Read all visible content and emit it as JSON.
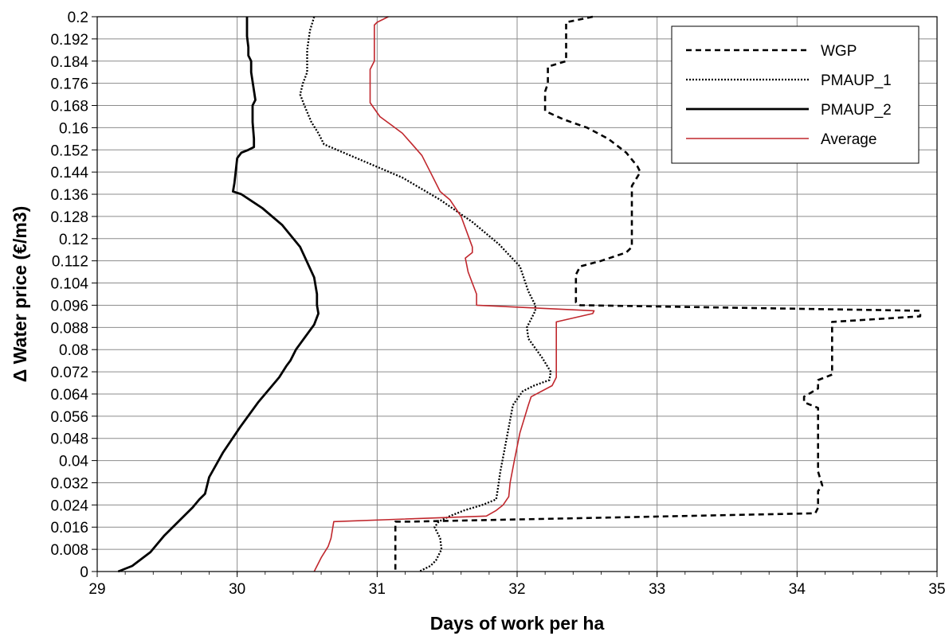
{
  "chart_data": {
    "type": "line",
    "xlabel": "Days of work per ha",
    "ylabel": "Δ Water price (€/m3)",
    "xlim": [
      29,
      35
    ],
    "ylim": [
      0,
      0.2
    ],
    "xticks": [
      "29",
      "30",
      "31",
      "32",
      "33",
      "34",
      "35"
    ],
    "yticks": [
      "0",
      "0.008",
      "0.016",
      "0.024",
      "0.032",
      "0.04",
      "0.048",
      "0.056",
      "0.064",
      "0.072",
      "0.08",
      "0.088",
      "0.096",
      "0.104",
      "0.112",
      "0.12",
      "0.128",
      "0.136",
      "0.144",
      "0.152",
      "0.16",
      "0.168",
      "0.176",
      "0.184",
      "0.192",
      "0.2"
    ],
    "grid": true,
    "legend_position": "top-right",
    "series": [
      {
        "name": "WGP",
        "color": "#000000",
        "style": "dashed",
        "points": [
          [
            32.54,
            0.2
          ],
          [
            32.35,
            0.198
          ],
          [
            32.35,
            0.184
          ],
          [
            32.22,
            0.182
          ],
          [
            32.22,
            0.176
          ],
          [
            32.2,
            0.173
          ],
          [
            32.2,
            0.166
          ],
          [
            32.33,
            0.163
          ],
          [
            32.5,
            0.16
          ],
          [
            32.65,
            0.156
          ],
          [
            32.78,
            0.151
          ],
          [
            32.86,
            0.146
          ],
          [
            32.88,
            0.144
          ],
          [
            32.82,
            0.139
          ],
          [
            32.82,
            0.128
          ],
          [
            32.82,
            0.117
          ],
          [
            32.78,
            0.115
          ],
          [
            32.6,
            0.112
          ],
          [
            32.45,
            0.11
          ],
          [
            32.42,
            0.107
          ],
          [
            32.42,
            0.097
          ],
          [
            32.45,
            0.096
          ],
          [
            34.88,
            0.094
          ],
          [
            34.88,
            0.092
          ],
          [
            34.25,
            0.09
          ],
          [
            34.25,
            0.081
          ],
          [
            34.25,
            0.072
          ],
          [
            34.25,
            0.071
          ],
          [
            34.15,
            0.069
          ],
          [
            34.15,
            0.066
          ],
          [
            34.05,
            0.063
          ],
          [
            34.05,
            0.061
          ],
          [
            34.15,
            0.059
          ],
          [
            34.15,
            0.048
          ],
          [
            34.15,
            0.036
          ],
          [
            34.18,
            0.031
          ],
          [
            34.15,
            0.029
          ],
          [
            34.15,
            0.023
          ],
          [
            34.13,
            0.021
          ],
          [
            31.25,
            0.018
          ],
          [
            31.13,
            0.018
          ],
          [
            31.13,
            0.01
          ],
          [
            31.13,
            0
          ]
        ]
      },
      {
        "name": "PMAUP_1",
        "color": "#000000",
        "style": "dotted",
        "points": [
          [
            30.55,
            0.2
          ],
          [
            30.52,
            0.195
          ],
          [
            30.5,
            0.188
          ],
          [
            30.5,
            0.18
          ],
          [
            30.47,
            0.176
          ],
          [
            30.45,
            0.172
          ],
          [
            30.48,
            0.168
          ],
          [
            30.53,
            0.162
          ],
          [
            30.58,
            0.158
          ],
          [
            30.62,
            0.154
          ],
          [
            30.9,
            0.148
          ],
          [
            31.18,
            0.142
          ],
          [
            31.45,
            0.134
          ],
          [
            31.68,
            0.126
          ],
          [
            31.87,
            0.118
          ],
          [
            32.02,
            0.11
          ],
          [
            32.08,
            0.101
          ],
          [
            32.13,
            0.096
          ],
          [
            32.13,
            0.094
          ],
          [
            32.07,
            0.088
          ],
          [
            32.08,
            0.084
          ],
          [
            32.18,
            0.077
          ],
          [
            32.24,
            0.072
          ],
          [
            32.23,
            0.069
          ],
          [
            32.12,
            0.067
          ],
          [
            32.04,
            0.065
          ],
          [
            31.97,
            0.06
          ],
          [
            31.94,
            0.052
          ],
          [
            31.91,
            0.044
          ],
          [
            31.88,
            0.036
          ],
          [
            31.86,
            0.029
          ],
          [
            31.85,
            0.026
          ],
          [
            31.75,
            0.024
          ],
          [
            31.62,
            0.022
          ],
          [
            31.52,
            0.02
          ],
          [
            31.44,
            0.018
          ],
          [
            31.41,
            0.016
          ],
          [
            31.45,
            0.012
          ],
          [
            31.46,
            0.008
          ],
          [
            31.42,
            0.004
          ],
          [
            31.38,
            0.002
          ],
          [
            31.3,
            0
          ]
        ]
      },
      {
        "name": "PMAUP_2",
        "color": "#000000",
        "style": "solid",
        "points": [
          [
            30.07,
            0.2
          ],
          [
            30.07,
            0.193
          ],
          [
            30.08,
            0.189
          ],
          [
            30.08,
            0.186
          ],
          [
            30.1,
            0.184
          ],
          [
            30.1,
            0.18
          ],
          [
            30.13,
            0.17
          ],
          [
            30.11,
            0.168
          ],
          [
            30.11,
            0.162
          ],
          [
            30.12,
            0.156
          ],
          [
            30.12,
            0.153
          ],
          [
            30.08,
            0.152
          ],
          [
            30.03,
            0.151
          ],
          [
            30.0,
            0.149
          ],
          [
            29.98,
            0.14
          ],
          [
            29.97,
            0.137
          ],
          [
            30.03,
            0.136
          ],
          [
            30.18,
            0.131
          ],
          [
            30.32,
            0.125
          ],
          [
            30.45,
            0.117
          ],
          [
            30.55,
            0.106
          ],
          [
            30.57,
            0.1
          ],
          [
            30.57,
            0.096
          ],
          [
            30.58,
            0.093
          ],
          [
            30.55,
            0.089
          ],
          [
            30.42,
            0.08
          ],
          [
            30.38,
            0.076
          ],
          [
            30.35,
            0.074
          ],
          [
            30.3,
            0.07
          ],
          [
            30.25,
            0.067
          ],
          [
            30.15,
            0.061
          ],
          [
            30.02,
            0.052
          ],
          [
            29.9,
            0.043
          ],
          [
            29.8,
            0.034
          ],
          [
            29.77,
            0.028
          ],
          [
            29.73,
            0.026
          ],
          [
            29.68,
            0.023
          ],
          [
            29.6,
            0.019
          ],
          [
            29.48,
            0.013
          ],
          [
            29.38,
            0.007
          ],
          [
            29.25,
            0.002
          ],
          [
            29.15,
            0
          ]
        ]
      },
      {
        "name": "Average",
        "color": "#c0272d",
        "style": "solid",
        "points": [
          [
            31.08,
            0.2
          ],
          [
            31.0,
            0.198
          ],
          [
            30.98,
            0.197
          ],
          [
            30.98,
            0.184
          ],
          [
            30.95,
            0.181
          ],
          [
            30.95,
            0.17
          ],
          [
            30.95,
            0.169
          ],
          [
            31.02,
            0.164
          ],
          [
            31.1,
            0.161
          ],
          [
            31.18,
            0.158
          ],
          [
            31.25,
            0.154
          ],
          [
            31.32,
            0.15
          ],
          [
            31.38,
            0.144
          ],
          [
            31.45,
            0.137
          ],
          [
            31.52,
            0.134
          ],
          [
            31.6,
            0.128
          ],
          [
            31.68,
            0.117
          ],
          [
            31.68,
            0.115
          ],
          [
            31.63,
            0.113
          ],
          [
            31.65,
            0.108
          ],
          [
            31.68,
            0.104
          ],
          [
            31.71,
            0.1
          ],
          [
            31.71,
            0.096
          ],
          [
            32.55,
            0.094
          ],
          [
            32.54,
            0.093
          ],
          [
            32.28,
            0.09
          ],
          [
            32.28,
            0.08
          ],
          [
            32.28,
            0.072
          ],
          [
            32.28,
            0.07
          ],
          [
            32.25,
            0.067
          ],
          [
            32.1,
            0.063
          ],
          [
            32.08,
            0.06
          ],
          [
            32.02,
            0.05
          ],
          [
            31.98,
            0.04
          ],
          [
            31.95,
            0.032
          ],
          [
            31.94,
            0.027
          ],
          [
            31.9,
            0.024
          ],
          [
            31.85,
            0.022
          ],
          [
            31.78,
            0.02
          ],
          [
            30.69,
            0.018
          ],
          [
            30.67,
            0.012
          ],
          [
            30.65,
            0.009
          ],
          [
            30.6,
            0.005
          ],
          [
            30.55,
            0
          ]
        ]
      }
    ]
  }
}
